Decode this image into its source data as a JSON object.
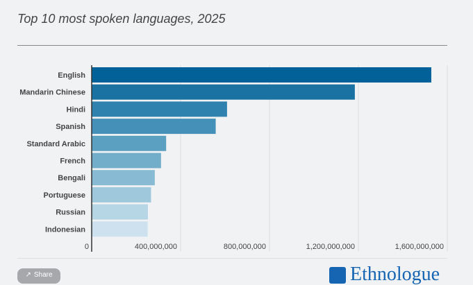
{
  "chart_data": {
    "type": "bar",
    "orientation": "horizontal",
    "title": "Top 10 most spoken languages, 2025",
    "categories": [
      "English",
      "Mandarin Chinese",
      "Hindi",
      "Spanish",
      "Standard Arabic",
      "French",
      "Bengali",
      "Portuguese",
      "Russian",
      "Indonesian"
    ],
    "values": [
      1528000000,
      1184000000,
      609000000,
      558000000,
      335000000,
      312000000,
      284000000,
      267000000,
      253000000,
      252000000
    ],
    "colors": [
      "#03619a",
      "#1a72a3",
      "#2f82ae",
      "#4590b8",
      "#5b9fc1",
      "#72adca",
      "#88bbd3",
      "#9fc8dc",
      "#b6d5e5",
      "#cde2ee"
    ],
    "xlim": [
      0,
      1600000000
    ],
    "xticks": [
      0,
      400000000,
      800000000,
      1200000000,
      1600000000
    ],
    "xtick_labels": [
      "0",
      "400,000,000",
      "800,000,000",
      "1,200,000,000",
      "1,600,000,000"
    ],
    "grid": true,
    "xlabel": "",
    "ylabel": ""
  },
  "footer": {
    "share_label": "Share",
    "share_icon": "share-icon",
    "logo_text": "Ethnologue"
  }
}
